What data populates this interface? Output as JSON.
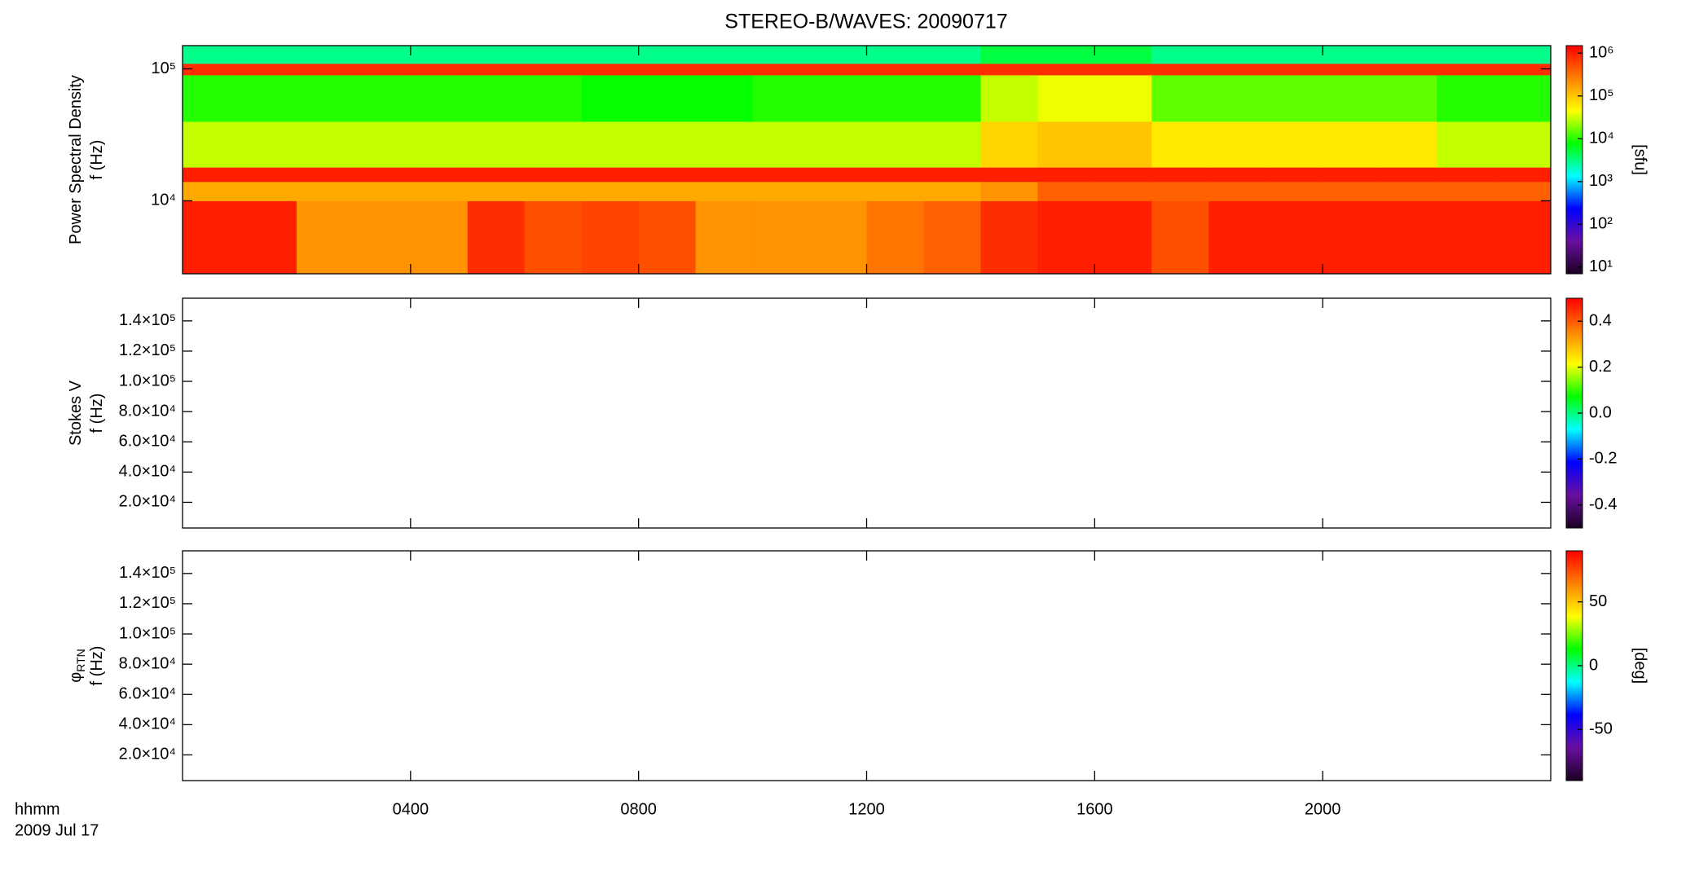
{
  "title": "STEREO-B/WAVES: 20090717",
  "xaxis": {
    "xlim": [
      0,
      24
    ],
    "xticks": [
      {
        "value": 4,
        "label": "0400"
      },
      {
        "value": 8,
        "label": "0800"
      },
      {
        "value": 12,
        "label": "1200"
      },
      {
        "value": 16,
        "label": "1600"
      },
      {
        "value": 20,
        "label": "2000"
      }
    ],
    "labels": [
      "hhmm",
      "2009 Jul 17"
    ]
  },
  "colormap": [
    "#1a0020",
    "#6a0fa0",
    "#0000ff",
    "#00ffff",
    "#00ff00",
    "#ffff00",
    "#ff8000",
    "#ff0000"
  ],
  "chart_data": [
    {
      "type": "heatmap",
      "ylabel": [
        "Power Spectral Density",
        "f (Hz)"
      ],
      "ylog": true,
      "ylim": [
        2800,
        150000
      ],
      "yticks": [
        {
          "value": 10000,
          "label": "10⁴"
        },
        {
          "value": 100000,
          "label": "10⁵"
        }
      ],
      "clog": true,
      "clim": [
        7,
        1500000
      ],
      "clabel": "[sfu]",
      "cticks": [
        {
          "value": 10,
          "label": "10¹"
        },
        {
          "value": 100,
          "label": "10²"
        },
        {
          "value": 1000,
          "label": "10³"
        },
        {
          "value": 10000,
          "label": "10⁴"
        },
        {
          "value": 100000,
          "label": "10⁵"
        },
        {
          "value": 1000000,
          "label": "10⁶"
        }
      ],
      "xbins": [
        0,
        1,
        2,
        3,
        4,
        5,
        6,
        7,
        8,
        9,
        10,
        11,
        12,
        13,
        14,
        15,
        16,
        17,
        18,
        19,
        20,
        21,
        22,
        23,
        24
      ],
      "ybins": [
        2800,
        10000,
        14000,
        18000,
        40000,
        90000,
        110000,
        150000
      ],
      "z": [
        [
          1000000,
          1000000,
          200000,
          200000,
          200000,
          800000,
          500000,
          600000,
          500000,
          200000,
          200000,
          200000,
          300000,
          400000,
          800000,
          1000000,
          1000000,
          500000,
          1000000,
          1000000,
          1000000,
          1000000,
          1000000,
          1000000
        ],
        [
          150000,
          150000,
          150000,
          150000,
          150000,
          150000,
          150000,
          150000,
          150000,
          150000,
          150000,
          150000,
          150000,
          150000,
          200000,
          400000,
          400000,
          400000,
          400000,
          400000,
          400000,
          400000,
          400000,
          400000
        ],
        [
          1000000,
          1000000,
          1000000,
          1000000,
          1000000,
          1000000,
          1000000,
          1000000,
          1000000,
          1000000,
          1000000,
          1000000,
          1000000,
          1000000,
          1000000,
          1000000,
          1000000,
          1000000,
          1000000,
          1000000,
          1000000,
          1000000,
          1000000,
          1000000
        ],
        [
          30000,
          30000,
          30000,
          30000,
          30000,
          30000,
          30000,
          30000,
          30000,
          30000,
          30000,
          30000,
          30000,
          30000,
          80000,
          100000,
          100000,
          60000,
          60000,
          60000,
          60000,
          60000,
          30000,
          30000
        ],
        [
          10000,
          10000,
          10000,
          10000,
          10000,
          10000,
          10000,
          8000,
          8000,
          8000,
          10000,
          10000,
          10000,
          10000,
          30000,
          40000,
          40000,
          15000,
          15000,
          15000,
          15000,
          15000,
          10000,
          10000
        ],
        [
          800000,
          800000,
          800000,
          800000,
          800000,
          800000,
          800000,
          800000,
          800000,
          800000,
          800000,
          800000,
          800000,
          800000,
          800000,
          800000,
          800000,
          800000,
          800000,
          800000,
          800000,
          800000,
          800000,
          800000
        ],
        [
          3000,
          3000,
          3000,
          3000,
          3000,
          3000,
          3000,
          3000,
          3000,
          3000,
          3000,
          3000,
          3000,
          3000,
          5000,
          5000,
          5000,
          3000,
          3000,
          3000,
          3000,
          3000,
          3000,
          3000
        ]
      ]
    },
    {
      "type": "heatmap",
      "ylabel": [
        "Stokes V",
        "f (Hz)"
      ],
      "ylog": false,
      "ylim": [
        3000,
        155000
      ],
      "yticks": [
        {
          "value": 20000,
          "label": "2.0×10⁴"
        },
        {
          "value": 40000,
          "label": "4.0×10⁴"
        },
        {
          "value": 60000,
          "label": "6.0×10⁴"
        },
        {
          "value": 80000,
          "label": "8.0×10⁴"
        },
        {
          "value": 100000,
          "label": "1.0×10⁵"
        },
        {
          "value": 120000,
          "label": "1.2×10⁵"
        },
        {
          "value": 140000,
          "label": "1.4×10⁵"
        }
      ],
      "clog": false,
      "clim": [
        -0.5,
        0.5
      ],
      "cticks": [
        -0.4,
        -0.2,
        {
          "value": 0,
          "label": "0.0"
        },
        0.2,
        0.4
      ]
    },
    {
      "type": "heatmap",
      "ylabel": [
        "φ",
        "f (Hz)"
      ],
      "ylabel_sub": "RTN",
      "ylog": false,
      "ylim": [
        3000,
        155000
      ],
      "yticks": [
        {
          "value": 20000,
          "label": "2.0×10⁴"
        },
        {
          "value": 40000,
          "label": "4.0×10⁴"
        },
        {
          "value": 60000,
          "label": "6.0×10⁴"
        },
        {
          "value": 80000,
          "label": "8.0×10⁴"
        },
        {
          "value": 100000,
          "label": "1.0×10⁵"
        },
        {
          "value": 120000,
          "label": "1.2×10⁵"
        },
        {
          "value": 140000,
          "label": "1.4×10⁵"
        }
      ],
      "clog": false,
      "clim": [
        -90,
        90
      ],
      "clabel": "[deg]",
      "cticks": [
        -50,
        0,
        50
      ]
    }
  ]
}
